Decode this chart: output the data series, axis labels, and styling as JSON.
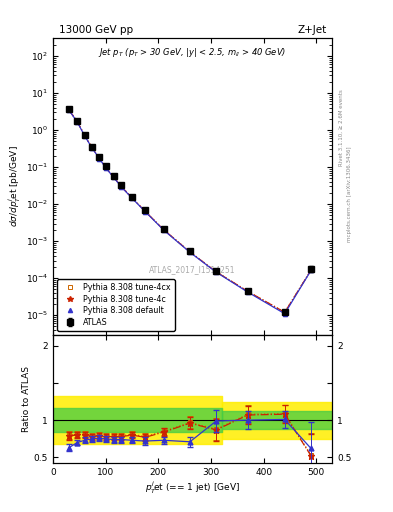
{
  "title_left": "13000 GeV pp",
  "title_right": "Z+Jet",
  "watermark": "ATLAS_2017_I1514251",
  "right_label1": "Rivet 3.1.10, ≥ 2.6M events",
  "right_label2": "mcplots.cern.ch [arXiv:1306.3436]",
  "atlas_x": [
    30,
    46,
    60,
    74,
    88,
    100,
    115,
    130,
    150,
    175,
    210,
    260,
    310,
    370,
    440,
    490
  ],
  "atlas_y": [
    3.8,
    1.8,
    0.75,
    0.36,
    0.185,
    0.105,
    0.058,
    0.032,
    0.016,
    0.007,
    0.0022,
    0.00055,
    0.00016,
    4.5e-05,
    1.2e-05,
    0.00018
  ],
  "atlas_yerr_lo": [
    0.3,
    0.15,
    0.06,
    0.03,
    0.015,
    0.009,
    0.005,
    0.003,
    0.0015,
    0.0006,
    0.0002,
    5e-05,
    1.5e-05,
    5e-06,
    1.5e-06,
    3e-05
  ],
  "atlas_yerr_hi": [
    0.3,
    0.15,
    0.06,
    0.03,
    0.015,
    0.009,
    0.005,
    0.003,
    0.0015,
    0.0006,
    0.0002,
    5e-05,
    1.5e-05,
    5e-06,
    1.5e-06,
    3e-05
  ],
  "py_default_x": [
    30,
    46,
    60,
    74,
    88,
    100,
    115,
    130,
    150,
    175,
    210,
    260,
    310,
    370,
    440,
    490
  ],
  "py_default_y": [
    3.5,
    1.65,
    0.7,
    0.33,
    0.17,
    0.096,
    0.053,
    0.029,
    0.0145,
    0.0063,
    0.002,
    0.0005,
    0.000145,
    4.2e-05,
    1.1e-05,
    0.000163
  ],
  "py_4c_x": [
    30,
    46,
    60,
    74,
    88,
    100,
    115,
    130,
    150,
    175,
    210,
    260,
    310,
    370,
    440,
    490
  ],
  "py_4c_y": [
    3.55,
    1.68,
    0.72,
    0.335,
    0.172,
    0.097,
    0.054,
    0.0295,
    0.0148,
    0.0064,
    0.00205,
    0.00051,
    0.000148,
    4.4e-05,
    1.2e-05,
    0.000165
  ],
  "py_4cx_x": [
    30,
    46,
    60,
    74,
    88,
    100,
    115,
    130,
    150,
    175,
    210,
    260,
    310,
    370,
    440,
    490
  ],
  "py_4cx_y": [
    3.57,
    1.7,
    0.725,
    0.338,
    0.174,
    0.098,
    0.0545,
    0.0298,
    0.01495,
    0.00645,
    0.00207,
    0.000515,
    0.00015,
    4.4e-05,
    1.21e-05,
    0.000167
  ],
  "ratio_default_x": [
    30,
    46,
    60,
    74,
    88,
    100,
    115,
    130,
    150,
    175,
    210,
    260,
    310,
    370,
    440,
    490
  ],
  "ratio_default_y": [
    0.63,
    0.7,
    0.73,
    0.75,
    0.76,
    0.75,
    0.74,
    0.74,
    0.73,
    0.72,
    0.73,
    0.71,
    0.99,
    1.0,
    1.01,
    0.62
  ],
  "ratio_default_yerr": [
    0.05,
    0.04,
    0.04,
    0.04,
    0.04,
    0.04,
    0.04,
    0.04,
    0.04,
    0.05,
    0.05,
    0.07,
    0.15,
    0.12,
    0.12,
    0.35
  ],
  "ratio_4c_x": [
    30,
    46,
    60,
    74,
    88,
    100,
    115,
    130,
    150,
    175,
    210,
    260,
    310,
    370,
    440,
    490
  ],
  "ratio_4c_y": [
    0.79,
    0.8,
    0.8,
    0.78,
    0.79,
    0.78,
    0.78,
    0.78,
    0.8,
    0.77,
    0.84,
    0.96,
    0.87,
    1.07,
    1.08,
    0.52
  ],
  "ratio_4c_yerr": [
    0.05,
    0.04,
    0.04,
    0.04,
    0.04,
    0.04,
    0.04,
    0.04,
    0.04,
    0.05,
    0.05,
    0.08,
    0.15,
    0.12,
    0.12,
    0.3
  ],
  "ratio_4cx_x": [
    30,
    46,
    60,
    74,
    88,
    100,
    115,
    130,
    150,
    175,
    210,
    260,
    310,
    370,
    440,
    490
  ],
  "ratio_4cx_y": [
    0.8,
    0.81,
    0.81,
    0.79,
    0.8,
    0.79,
    0.79,
    0.79,
    0.81,
    0.78,
    0.85,
    0.97,
    0.88,
    1.08,
    1.09,
    0.53
  ],
  "ratio_4cx_yerr": [
    0.05,
    0.04,
    0.04,
    0.04,
    0.04,
    0.04,
    0.04,
    0.04,
    0.04,
    0.05,
    0.05,
    0.08,
    0.15,
    0.12,
    0.12,
    0.3
  ],
  "color_default": "#3333cc",
  "color_4c": "#cc2200",
  "color_4cx": "#cc6600",
  "xlim_main": [
    15,
    530
  ],
  "ylim_main": [
    3e-06,
    300
  ],
  "xlim_ratio": [
    0,
    530
  ],
  "ylim_ratio": [
    0.42,
    2.15
  ],
  "green_xsplit": 320,
  "green_ylo1": 0.84,
  "green_yhi1": 1.16,
  "green_ylo2": 0.88,
  "green_yhi2": 1.12,
  "yellow_ylo1": 0.68,
  "yellow_yhi1": 1.32,
  "yellow_ylo2": 0.75,
  "yellow_yhi2": 1.25
}
